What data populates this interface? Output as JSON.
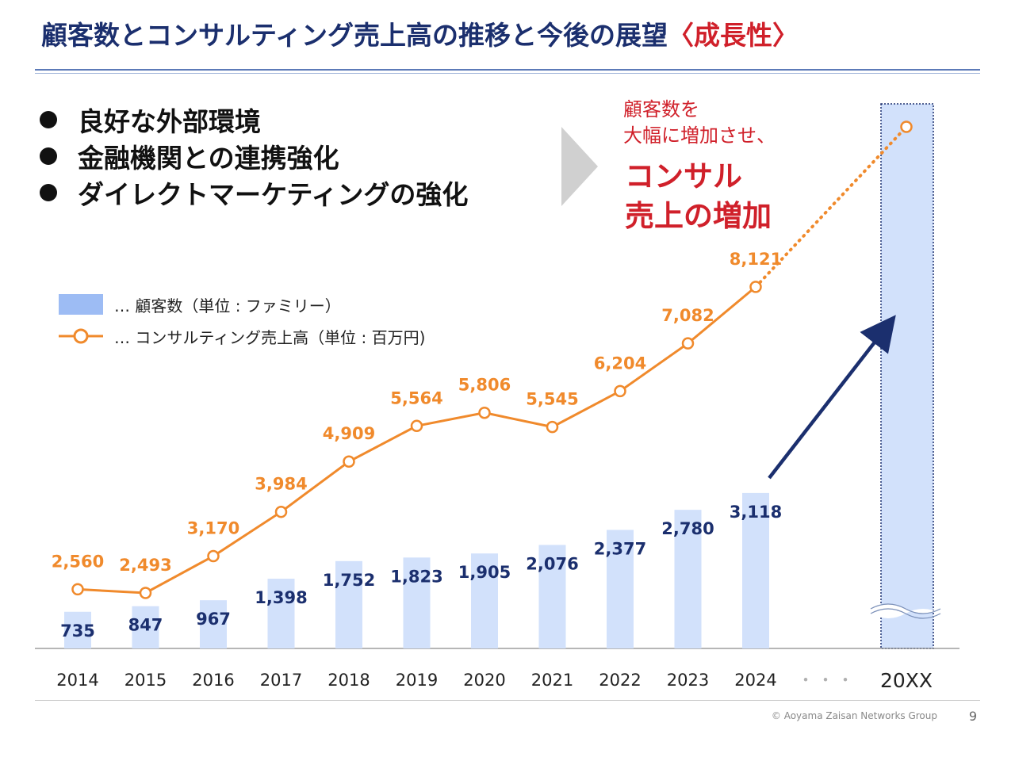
{
  "header": {
    "title_main": "顧客数とコンサルティング売上高の推移と今後の展望",
    "title_accent": "〈成長性〉"
  },
  "bullets": [
    "良好な外部環境",
    "金融機関との連携強化",
    "ダイレクトマーケティングの強化"
  ],
  "message": {
    "small": "顧客数を\n大幅に増加させ、",
    "big": "コンサル\n売上の増加"
  },
  "legend": {
    "bars_label": "… 顧客数（単位 : ファミリー）",
    "line_label": "… コンサルティング売上高（単位 : 百万円)"
  },
  "footer": {
    "copyright": "© Aoyama Zaisan Networks Group",
    "page": "9"
  },
  "colors": {
    "bar": "#d2e1fb",
    "bar_label": "#1b2f6e",
    "line": "#f08a2c",
    "arrow": "#1b2f6e",
    "accent": "#d0202a"
  },
  "chart_data": {
    "type": "bar",
    "categories": [
      "2014",
      "2015",
      "2016",
      "2017",
      "2018",
      "2019",
      "2020",
      "2021",
      "2022",
      "2023",
      "2024"
    ],
    "future_category": "20XX",
    "gap_marker": "・・・",
    "series": [
      {
        "name": "顧客数（単位 : ファミリー）",
        "type": "bar",
        "values": [
          735,
          847,
          967,
          1398,
          1752,
          1823,
          1905,
          2076,
          2377,
          2780,
          3118
        ],
        "labels": [
          "735",
          "847",
          "967",
          "1,398",
          "1,752",
          "1,823",
          "1,905",
          "2,076",
          "2,377",
          "2,780",
          "3,118"
        ]
      },
      {
        "name": "コンサルティング売上高（単位 : 百万円)",
        "type": "line",
        "values": [
          2560,
          2493,
          3170,
          3984,
          4909,
          5564,
          5806,
          5545,
          6204,
          7082,
          8121
        ],
        "labels": [
          "2,560",
          "2,493",
          "3,170",
          "3,984",
          "4,909",
          "5,564",
          "5,806",
          "5,545",
          "6,204",
          "7,082",
          "8,121"
        ]
      }
    ],
    "grid": false
  }
}
